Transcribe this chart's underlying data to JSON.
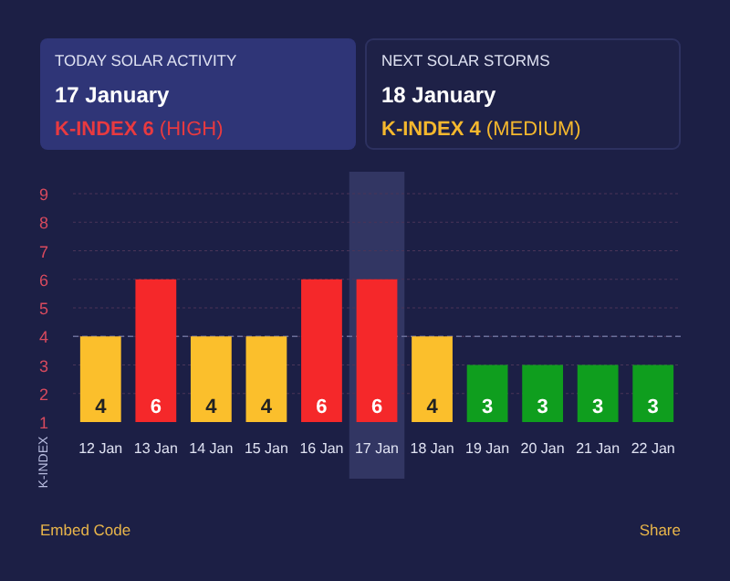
{
  "chart_data": {
    "type": "bar",
    "ylabel": "K-INDEX",
    "categories": [
      "12 Jan",
      "13 Jan",
      "14 Jan",
      "15 Jan",
      "16 Jan",
      "17 Jan",
      "18 Jan",
      "19 Jan",
      "20 Jan",
      "21 Jan",
      "22 Jan"
    ],
    "values": [
      4,
      6,
      4,
      4,
      6,
      6,
      4,
      3,
      3,
      3,
      3
    ],
    "colors": [
      "#fbbf2c",
      "#f5282a",
      "#fbbf2c",
      "#fbbf2c",
      "#f5282a",
      "#f5282a",
      "#fbbf2c",
      "#0f9e1e",
      "#0f9e1e",
      "#0f9e1e",
      "#0f9e1e"
    ],
    "ylim": [
      1,
      9
    ],
    "yticks": [
      1,
      2,
      3,
      4,
      5,
      6,
      7,
      8,
      9
    ],
    "grid": "y",
    "data_labels": true,
    "ref_lines": [
      {
        "axis": "y",
        "value": 4,
        "line_style": "dashed",
        "color": "#6a6f9a"
      }
    ],
    "bands": [
      {
        "axis": "x",
        "from": "17 Jan",
        "to": "17 Jan",
        "color": "#3a3f6e"
      }
    ],
    "annotations": [
      "TODAY SOLAR ACTIVITY",
      "17 January",
      "K-INDEX 6",
      "(HIGH)",
      "NEXT SOLAR STORMS",
      "18 January",
      "K-INDEX 4",
      "(MEDIUM)",
      "Embed Code",
      "Share"
    ]
  }
}
